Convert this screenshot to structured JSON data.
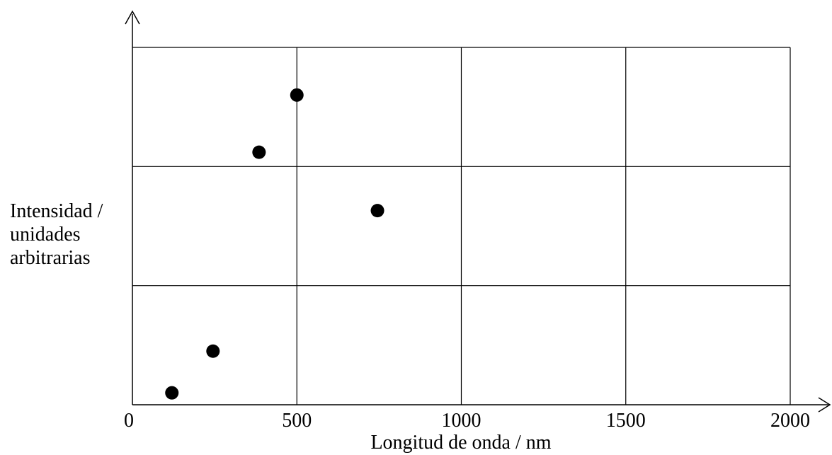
{
  "chart_data": {
    "type": "scatter",
    "title": "",
    "xlabel": "Longitud de onda / nm",
    "ylabel": [
      "Intensidad /",
      "unidades",
      "arbitrarias"
    ],
    "xlim": [
      0,
      2000
    ],
    "ylim": [
      0,
      3
    ],
    "grid": true,
    "x_ticks": [
      0,
      500,
      1000,
      1500,
      2000
    ],
    "y_gridlines": [
      1,
      2,
      3
    ],
    "x_tick_labels": [
      "0",
      "500",
      "1000",
      "1500",
      "2000"
    ],
    "points": [
      {
        "x": 120,
        "y": 0.1
      },
      {
        "x": 245,
        "y": 0.45
      },
      {
        "x": 385,
        "y": 2.12
      },
      {
        "x": 500,
        "y": 2.6
      },
      {
        "x": 745,
        "y": 1.63
      }
    ],
    "marker_color": "#000000"
  }
}
